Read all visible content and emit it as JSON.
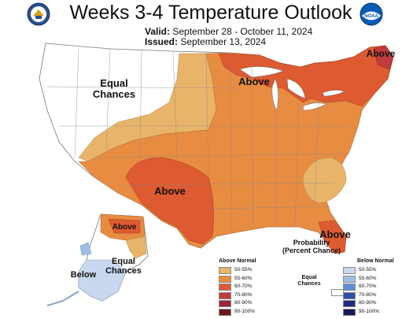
{
  "title": "Weeks 3-4 Temperature Outlook",
  "valid_label": "Valid:",
  "valid_dates": "September 28 - October 11, 2024",
  "issued_label": "Issued:",
  "issued_date": "September 13, 2024",
  "logos": {
    "left": "doc-seal-icon",
    "right": "noaa-logo-icon",
    "noaa_text": "NOAA"
  },
  "map_labels": {
    "equal_chances_west_1": "Equal",
    "equal_chances_west_2": "Chances",
    "above_great_lakes": "Above",
    "above_maine": "Above",
    "above_texas": "Above",
    "above_florida": "Above",
    "above_alaska": "Above",
    "below_alaska": "Below",
    "equal_chances_alaska_1": "Equal",
    "equal_chances_alaska_2": "Chances"
  },
  "legend": {
    "title_1": "Probability",
    "title_2": "(Percent Chance)",
    "above_header": "Above Normal",
    "below_header": "Below Normal",
    "equal_1": "Equal",
    "equal_2": "Chances",
    "above": [
      {
        "label": "50-55%",
        "color": "#e8b46a"
      },
      {
        "label": "55-60%",
        "color": "#e88c42"
      },
      {
        "label": "60-70%",
        "color": "#de5a30"
      },
      {
        "label": "70-80%",
        "color": "#c23a3a"
      },
      {
        "label": "80-90%",
        "color": "#96283a"
      },
      {
        "label": "90-100%",
        "color": "#6a1a1a"
      }
    ],
    "below": [
      {
        "label": "50-55%",
        "color": "#c9d8ee"
      },
      {
        "label": "55-60%",
        "color": "#9cbfe4"
      },
      {
        "label": "60-70%",
        "color": "#5c8fd6"
      },
      {
        "label": "70-80%",
        "color": "#2d4fa8"
      },
      {
        "label": "80-90%",
        "color": "#1f2b80"
      },
      {
        "label": "90-100%",
        "color": "#16185a"
      }
    ]
  }
}
